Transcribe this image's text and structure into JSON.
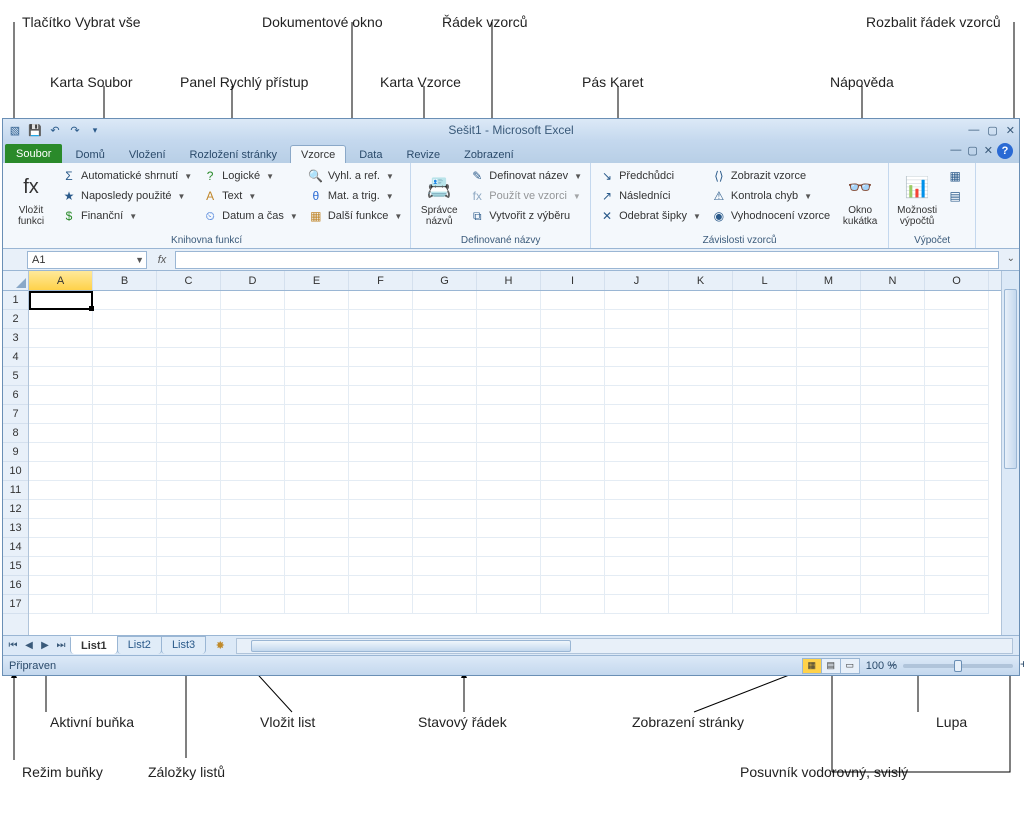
{
  "annotations": {
    "top": {
      "select_all": "Tlačítko Vybrat vše",
      "doc_window": "Dokumentové okno",
      "formula_row": "Řádek vzorců",
      "expand_fb": "Rozbalit řádek vzorců",
      "file_tab": "Karta Soubor",
      "qat": "Panel Rychlý přístup",
      "formulas_tab": "Karta Vzorce",
      "ribbon": "Pás Karet",
      "help": "Nápověda"
    },
    "bottom": {
      "active_cell": "Aktivní buňka",
      "insert_sheet": "Vložit list",
      "status_bar": "Stavový řádek",
      "page_view": "Zobrazení stránky",
      "zoom": "Lupa",
      "cell_mode": "Režim buňky",
      "sheet_tabs": "Záložky listů",
      "scroll": "Posuvník vodorovný, svislý"
    }
  },
  "window": {
    "title": "Sešit1  -  Microsoft Excel",
    "qat_icons": [
      "excel",
      "save",
      "undo",
      "redo",
      "customize"
    ]
  },
  "tabs": {
    "file": "Soubor",
    "items": [
      "Domů",
      "Vložení",
      "Rozložení stránky",
      "Vzorce",
      "Data",
      "Revize",
      "Zobrazení"
    ],
    "active_index": 3
  },
  "ribbon": {
    "groups": [
      {
        "label": "Knihovna funkcí",
        "big": [
          {
            "icon": "fx",
            "label": "Vložit funkci"
          }
        ],
        "cols": [
          [
            {
              "icon": "Σ",
              "label": "Automatické shrnutí",
              "dd": true
            },
            {
              "icon": "★",
              "label": "Naposledy použité",
              "dd": true
            },
            {
              "icon": "$",
              "label": "Finanční",
              "dd": true,
              "color": "#2a8a2a"
            }
          ],
          [
            {
              "icon": "?",
              "label": "Logické",
              "dd": true,
              "color": "#2a8a2a"
            },
            {
              "icon": "A",
              "label": "Text",
              "dd": true,
              "color": "#c0862a"
            },
            {
              "icon": "⏲",
              "label": "Datum a čas",
              "dd": true,
              "color": "#2a6ad4"
            }
          ],
          [
            {
              "icon": "🔍",
              "label": "Vyhl. a ref.",
              "dd": true,
              "color": "#6a4aa4"
            },
            {
              "icon": "θ",
              "label": "Mat. a trig.",
              "dd": true,
              "color": "#2a6ad4"
            },
            {
              "icon": "▦",
              "label": "Další funkce",
              "dd": true,
              "color": "#c0862a"
            }
          ]
        ]
      },
      {
        "label": "Definované názvy",
        "big": [
          {
            "icon": "📇",
            "label": "Správce názvů"
          }
        ],
        "cols": [
          [
            {
              "icon": "✎",
              "label": "Definovat název",
              "dd": true
            },
            {
              "icon": "fx",
              "label": "Použít ve vzorci",
              "dd": true,
              "disabled": true
            },
            {
              "icon": "⧉",
              "label": "Vytvořit z výběru"
            }
          ]
        ]
      },
      {
        "label": "Závislosti vzorců",
        "cols": [
          [
            {
              "icon": "↘",
              "label": "Předchůdci"
            },
            {
              "icon": "↗",
              "label": "Následníci"
            },
            {
              "icon": "✕",
              "label": "Odebrat šipky",
              "dd": true
            }
          ],
          [
            {
              "icon": "⟨⟩",
              "label": "Zobrazit vzorce"
            },
            {
              "icon": "⚠",
              "label": "Kontrola chyb",
              "dd": true
            },
            {
              "icon": "◉",
              "label": "Vyhodnocení vzorce"
            }
          ]
        ],
        "big_after": [
          {
            "icon": "👓",
            "label": "Okno kukátka"
          }
        ]
      },
      {
        "label": "Výpočet",
        "big": [
          {
            "icon": "📊",
            "label": "Možnosti výpočtů",
            "dd": true
          }
        ],
        "cols": [
          [
            {
              "icon": "▦",
              "label": ""
            },
            {
              "icon": "▤",
              "label": ""
            }
          ]
        ]
      }
    ]
  },
  "namebox": {
    "value": "A1",
    "fx_label": "fx"
  },
  "grid": {
    "columns": [
      "A",
      "B",
      "C",
      "D",
      "E",
      "F",
      "G",
      "H",
      "I",
      "J",
      "K",
      "L",
      "M",
      "N",
      "O"
    ],
    "selected_col": "A",
    "rows": 17,
    "active_cell": "A1"
  },
  "sheets": {
    "nav": [
      "⏮",
      "◀",
      "▶",
      "⏭"
    ],
    "tabs": [
      "List1",
      "List2",
      "List3"
    ],
    "active": 0,
    "new_icon": "✸"
  },
  "status": {
    "mode": "Připraven",
    "zoom": "100 %",
    "views": [
      "normal",
      "layout",
      "pagebreak"
    ],
    "active_view": 0
  },
  "colors": {
    "ribbon_bg": "#f4f8fc",
    "chrome": "#cfe0f2",
    "accent": "#2a6ad4",
    "sel": "#ffd24a"
  }
}
